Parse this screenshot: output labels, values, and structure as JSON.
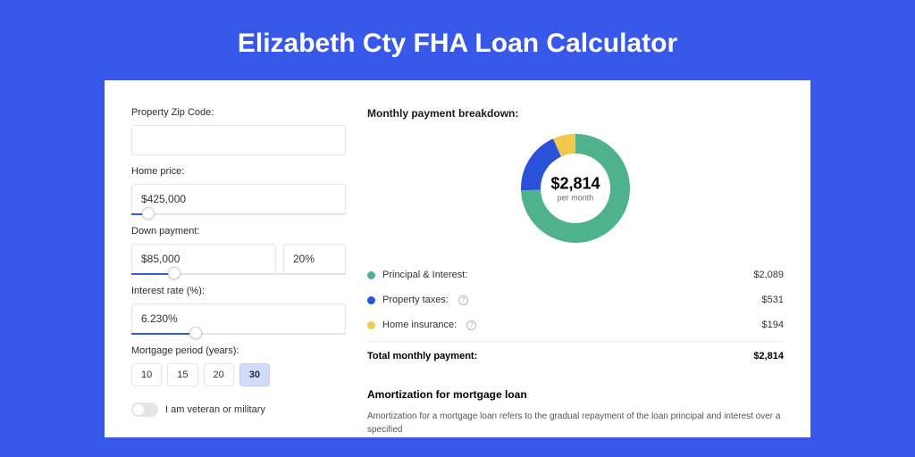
{
  "page_title": "Elizabeth Cty FHA Loan Calculator",
  "colors": {
    "brand": "#3858e9",
    "card_bg": "#ffffff",
    "pi": "#4eb28d",
    "tax": "#2952d9",
    "ins": "#f2c94c"
  },
  "form": {
    "zip": {
      "label": "Property Zip Code:",
      "value": ""
    },
    "home_price": {
      "label": "Home price:",
      "value": "$425,000",
      "slider_pct": 8
    },
    "down_payment": {
      "label": "Down payment:",
      "value": "$85,000",
      "pct": "20%",
      "slider_pct": 20
    },
    "interest": {
      "label": "Interest rate (%):",
      "value": "6.230%",
      "slider_pct": 30
    },
    "period": {
      "label": "Mortgage period (years):",
      "options": [
        "10",
        "15",
        "20",
        "30"
      ],
      "selected": "30"
    },
    "veteran": {
      "label": "I am veteran or military",
      "value": false
    }
  },
  "breakdown": {
    "title": "Monthly payment breakdown:",
    "donut": {
      "value": "$2,814",
      "sub": "per month"
    },
    "items": [
      {
        "label": "Principal & Interest:",
        "value": "$2,089",
        "color": "#4eb28d",
        "info": false,
        "num": 2089
      },
      {
        "label": "Property taxes:",
        "value": "$531",
        "color": "#2952d9",
        "info": true,
        "num": 531
      },
      {
        "label": "Home insurance:",
        "value": "$194",
        "color": "#f2c94c",
        "info": true,
        "num": 194
      }
    ],
    "total": {
      "label": "Total monthly payment:",
      "value": "$2,814",
      "num": 2814
    }
  },
  "amortization": {
    "title": "Amortization for mortgage loan",
    "text": "Amortization for a mortgage loan refers to the gradual repayment of the loan principal and interest over a specified"
  }
}
